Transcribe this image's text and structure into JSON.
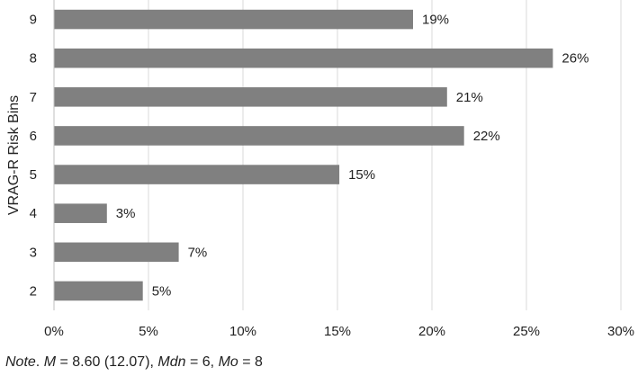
{
  "chart_data": {
    "type": "bar",
    "orientation": "horizontal",
    "categories": [
      "9",
      "8",
      "7",
      "6",
      "5",
      "4",
      "3",
      "2"
    ],
    "values": [
      19,
      26.4,
      20.8,
      21.7,
      15.1,
      2.8,
      6.6,
      4.7
    ],
    "data_labels": [
      "19%",
      "26%",
      "21%",
      "22%",
      "15%",
      "3%",
      "7%",
      "5%"
    ],
    "xlim": [
      0,
      30
    ],
    "x_ticks": [
      0,
      5,
      10,
      15,
      20,
      25,
      30
    ],
    "x_tick_labels": [
      "0%",
      "5%",
      "10%",
      "15%",
      "20%",
      "25%",
      "30%"
    ],
    "ylabel": "VRAG-R Risk Bins",
    "xlabel": "",
    "grid": "vertical",
    "bar_color": "#808080",
    "grid_color": "#d9d9d9"
  },
  "note": {
    "prefix": "Note",
    "text_after_prefix": ". ",
    "m_symbol": "M",
    "m_text": " = 8.60 (12.07), ",
    "mdn_symbol": "Mdn",
    "mdn_text": " = 6, ",
    "mo_symbol": "Mo",
    "mo_text": " = 8"
  }
}
